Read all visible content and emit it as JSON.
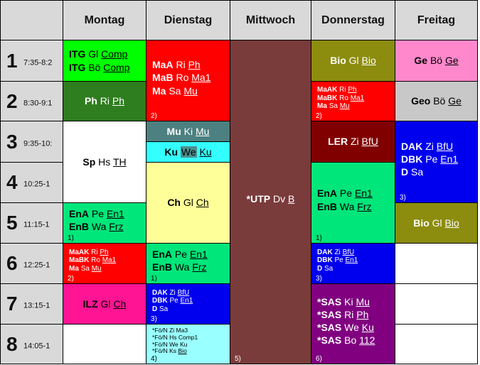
{
  "days": [
    "Montag",
    "Dienstag",
    "Mittwoch",
    "Donnerstag",
    "Freitag"
  ],
  "periods": [
    {
      "num": "1",
      "time": "7:35-8:2"
    },
    {
      "num": "2",
      "time": "8:30-9:1"
    },
    {
      "num": "3",
      "time": "9:35-10:"
    },
    {
      "num": "4",
      "time": "10:25-1"
    },
    {
      "num": "5",
      "time": "11:15-1"
    },
    {
      "num": "6",
      "time": "12:25-1"
    },
    {
      "num": "7",
      "time": "13:15-1"
    },
    {
      "num": "8",
      "time": "14:05-1"
    }
  ],
  "colors": {
    "green_light": "#00ff00",
    "green_dark": "#2e7d1e",
    "red": "#ff0000",
    "maroon": "#7a3b3b",
    "olive": "#8c8c0e",
    "pink": "#ff88cc",
    "grey": "#c8c8c8",
    "teal": "#4d8080",
    "cyan": "#33ffff",
    "yellow": "#ffff99",
    "mint": "#00e67a",
    "dark_red": "#800000",
    "blue": "#0000ee",
    "magenta": "#ff1493",
    "purple": "#800080",
    "light_cyan": "#99ffff"
  },
  "cells": [
    {
      "id": "mo-1",
      "col": 0,
      "row": 0,
      "span": 1,
      "color": "#00ff00",
      "fg": "#000",
      "size": "normal",
      "align": "left",
      "lines": [
        {
          "s": "ITG",
          "t": "Gl",
          "r": "Comp"
        },
        {
          "s": "ITG",
          "t": "Bö",
          "r": "Comp"
        }
      ]
    },
    {
      "id": "mo-2",
      "col": 0,
      "row": 1,
      "span": 1,
      "color": "#2e7d1e",
      "fg": "#fff",
      "size": "normal",
      "align": "center",
      "lines": [
        {
          "s": "Ph",
          "t": "Ri",
          "r": "Ph"
        }
      ]
    },
    {
      "id": "mo-3",
      "col": 0,
      "row": 2,
      "span": 2,
      "color": "#ffffff",
      "fg": "#000",
      "size": "normal",
      "align": "center",
      "lines": [
        {
          "s": "Sp",
          "t": "Hs",
          "r": "TH"
        }
      ]
    },
    {
      "id": "mo-5",
      "col": 0,
      "row": 4,
      "span": 1,
      "color": "#00e67a",
      "fg": "#000",
      "size": "normal",
      "align": "left",
      "note": "1)",
      "lines": [
        {
          "s": "EnA",
          "t": "Pe",
          "r": "En1"
        },
        {
          "s": "EnB",
          "t": "Wa",
          "r": "Frz"
        }
      ]
    },
    {
      "id": "mo-6",
      "col": 0,
      "row": 5,
      "span": 1,
      "color": "#ff0000",
      "fg": "#fff",
      "size": "small",
      "align": "left",
      "note": "2)",
      "lines": [
        {
          "s": "MaAK",
          "t": "Ri",
          "r": "Ph"
        },
        {
          "s": "MaBK",
          "t": "Ro",
          "r": "Ma1"
        },
        {
          "s": "Ma",
          "t": "Sa",
          "r": "Mu"
        }
      ]
    },
    {
      "id": "mo-7",
      "col": 0,
      "row": 6,
      "span": 1,
      "color": "#ff1493",
      "fg": "#000",
      "size": "normal",
      "align": "center",
      "lines": [
        {
          "s": "ILZ",
          "t": "Gl",
          "r": "Ch"
        }
      ]
    },
    {
      "id": "mo-8",
      "col": 0,
      "row": 7,
      "span": 1,
      "color": "#ffffff",
      "fg": "#000",
      "size": "normal",
      "align": "center",
      "lines": []
    },
    {
      "id": "di-1",
      "col": 1,
      "row": 0,
      "span": 2,
      "color": "#ff0000",
      "fg": "#fff",
      "size": "normal",
      "align": "left",
      "note": "2)",
      "lines": [
        {
          "s": "MaA",
          "t": "Ri",
          "r": "Ph"
        },
        {
          "s": "MaB",
          "t": "Ro",
          "r": "Ma1"
        },
        {
          "s": "Ma",
          "t": "Sa",
          "r": "Mu"
        }
      ]
    },
    {
      "id": "di-3",
      "col": 1,
      "row": 2,
      "span": 1,
      "color": "#4d8080",
      "fg": "#fff",
      "size": "half-top",
      "align": "center",
      "lines": [
        {
          "s": "Mu",
          "t": "Ki",
          "r": "Mu"
        }
      ]
    },
    {
      "id": "di-3b",
      "col": 1,
      "row": 2,
      "span": 1,
      "color": "#33ffff",
      "fg": "#000",
      "size": "half-bottom",
      "align": "center",
      "lines": [
        {
          "s": "Ku",
          "t": "We",
          "r": "Ku"
        }
      ]
    },
    {
      "id": "di-4",
      "col": 1,
      "row": 3,
      "span": 2,
      "color": "#ffff99",
      "fg": "#000",
      "size": "normal",
      "align": "center",
      "lines": [
        {
          "s": "Ch",
          "t": "Gl",
          "r": "Ch"
        }
      ]
    },
    {
      "id": "di-6",
      "col": 1,
      "row": 5,
      "span": 1,
      "color": "#00e67a",
      "fg": "#000",
      "size": "normal",
      "align": "left",
      "note": "1)",
      "lines": [
        {
          "s": "EnA",
          "t": "Pe",
          "r": "En1"
        },
        {
          "s": "EnB",
          "t": "Wa",
          "r": "Frz"
        }
      ]
    },
    {
      "id": "di-7",
      "col": 1,
      "row": 6,
      "span": 1,
      "color": "#0000ee",
      "fg": "#fff",
      "size": "small",
      "align": "left",
      "note": "3)",
      "lines": [
        {
          "s": "DAK",
          "t": "Zi",
          "r": "BfU"
        },
        {
          "s": "DBK",
          "t": "Pe",
          "r": "En1"
        },
        {
          "s": "D",
          "t": "Sa",
          "r": ""
        }
      ]
    },
    {
      "id": "di-8",
      "col": 1,
      "row": 7,
      "span": 1,
      "color": "#99ffff",
      "fg": "#000",
      "size": "tiny",
      "align": "left",
      "note": "4)",
      "lines": [
        {
          "s": "",
          "t": "*Fö/N Zi",
          "r": "Ma3",
          "plain": true
        },
        {
          "s": "",
          "t": "*Fö/N Hs",
          "r": "Comp1",
          "plain": true
        },
        {
          "s": "",
          "t": "*Fö/N We",
          "r": "Ku",
          "plain": true
        },
        {
          "s": "",
          "t": "*Fö/N Ks",
          "r": "Bio"
        }
      ]
    },
    {
      "id": "mi-1",
      "col": 2,
      "row": 0,
      "span": 8,
      "color": "#7a3b3b",
      "fg": "#fff",
      "size": "normal",
      "align": "center",
      "note": "5)",
      "lines": [
        {
          "s": "*UTP",
          "t": "Dv",
          "r": "B"
        }
      ]
    },
    {
      "id": "do-1",
      "col": 3,
      "row": 0,
      "span": 1,
      "color": "#8c8c0e",
      "fg": "#fff",
      "size": "normal",
      "align": "center",
      "lines": [
        {
          "s": "Bio",
          "t": "Gl",
          "r": "Bio"
        }
      ]
    },
    {
      "id": "do-2",
      "col": 3,
      "row": 1,
      "span": 1,
      "color": "#ff0000",
      "fg": "#fff",
      "size": "small",
      "align": "left",
      "note": "2)",
      "lines": [
        {
          "s": "MaAK",
          "t": "Ri",
          "r": "Ph"
        },
        {
          "s": "MaBK",
          "t": "Ro",
          "r": "Ma1"
        },
        {
          "s": "Ma",
          "t": "Sa",
          "r": "Mu"
        }
      ]
    },
    {
      "id": "do-3",
      "col": 3,
      "row": 2,
      "span": 1,
      "color": "#800000",
      "fg": "#fff",
      "size": "normal",
      "align": "center",
      "lines": [
        {
          "s": "LER",
          "t": "Zi",
          "r": "BfU"
        }
      ]
    },
    {
      "id": "do-4",
      "col": 3,
      "row": 3,
      "span": 2,
      "color": "#00e67a",
      "fg": "#000",
      "size": "normal",
      "align": "left",
      "note": "1)",
      "lines": [
        {
          "s": "EnA",
          "t": "Pe",
          "r": "En1"
        },
        {
          "s": "EnB",
          "t": "Wa",
          "r": "Frz"
        }
      ]
    },
    {
      "id": "do-6",
      "col": 3,
      "row": 5,
      "span": 1,
      "color": "#0000ee",
      "fg": "#fff",
      "size": "small",
      "align": "left",
      "note": "3)",
      "lines": [
        {
          "s": "DAK",
          "t": "Zi",
          "r": "BfU"
        },
        {
          "s": "DBK",
          "t": "Pe",
          "r": "En1"
        },
        {
          "s": "D",
          "t": "Sa",
          "r": ""
        }
      ]
    },
    {
      "id": "do-7",
      "col": 3,
      "row": 6,
      "span": 2,
      "color": "#800080",
      "fg": "#fff",
      "size": "normal",
      "align": "left",
      "note": "6)",
      "lines": [
        {
          "s": "*SAS",
          "t": "Ki",
          "r": "Mu"
        },
        {
          "s": "*SAS",
          "t": "Ri",
          "r": "Ph"
        },
        {
          "s": "*SAS",
          "t": "We",
          "r": "Ku"
        },
        {
          "s": "*SAS",
          "t": "Bo",
          "r": "112"
        }
      ]
    },
    {
      "id": "fr-1",
      "col": 4,
      "row": 0,
      "span": 1,
      "color": "#ff88cc",
      "fg": "#000",
      "size": "normal",
      "align": "center",
      "lines": [
        {
          "s": "Ge",
          "t": "Bö",
          "r": "Ge"
        }
      ]
    },
    {
      "id": "fr-2",
      "col": 4,
      "row": 1,
      "span": 1,
      "color": "#c8c8c8",
      "fg": "#000",
      "size": "normal",
      "align": "center",
      "lines": [
        {
          "s": "Geo",
          "t": "Bö",
          "r": "Ge"
        }
      ]
    },
    {
      "id": "fr-3",
      "col": 4,
      "row": 2,
      "span": 2,
      "color": "#0000ee",
      "fg": "#fff",
      "size": "normal",
      "align": "left",
      "note": "3)",
      "lines": [
        {
          "s": "DAK",
          "t": "Zi",
          "r": "BfU"
        },
        {
          "s": "DBK",
          "t": "Pe",
          "r": "En1"
        },
        {
          "s": "D",
          "t": "Sa",
          "r": ""
        }
      ]
    },
    {
      "id": "fr-5",
      "col": 4,
      "row": 4,
      "span": 1,
      "color": "#8c8c0e",
      "fg": "#fff",
      "size": "normal",
      "align": "center",
      "lines": [
        {
          "s": "Bio",
          "t": "Gl",
          "r": "Bio"
        }
      ]
    },
    {
      "id": "fr-6",
      "col": 4,
      "row": 5,
      "span": 1,
      "color": "#ffffff",
      "fg": "#000",
      "size": "normal",
      "align": "center",
      "lines": []
    },
    {
      "id": "fr-7",
      "col": 4,
      "row": 6,
      "span": 1,
      "color": "#ffffff",
      "fg": "#000",
      "size": "normal",
      "align": "center",
      "lines": []
    },
    {
      "id": "fr-8",
      "col": 4,
      "row": 7,
      "span": 1,
      "color": "#ffffff",
      "fg": "#000",
      "size": "normal",
      "align": "center",
      "lines": []
    }
  ]
}
